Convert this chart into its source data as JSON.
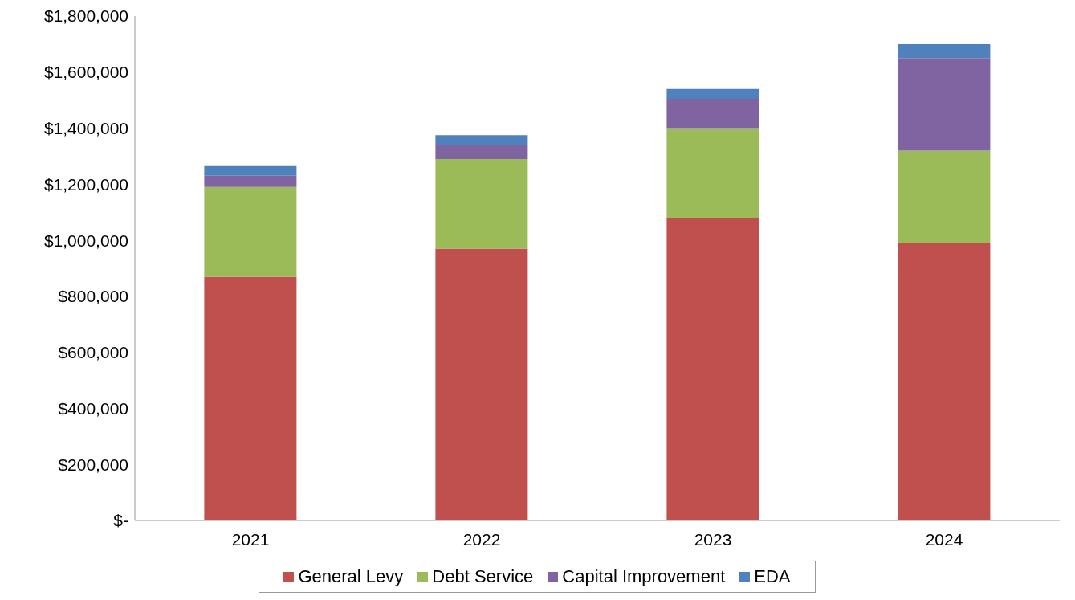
{
  "chart_data": {
    "type": "bar",
    "stacked": true,
    "categories": [
      "2021",
      "2022",
      "2023",
      "2024"
    ],
    "series": [
      {
        "name": "General Levy",
        "color": "#c0504d",
        "values": [
          870000,
          970000,
          1080000,
          990000
        ]
      },
      {
        "name": "Debt Service",
        "color": "#9bbb59",
        "values": [
          320000,
          320000,
          320000,
          330000
        ]
      },
      {
        "name": "Capital Improvement",
        "color": "#8064a2",
        "values": [
          40000,
          50000,
          105000,
          330000
        ]
      },
      {
        "name": "EDA",
        "color": "#4f81bd",
        "values": [
          35000,
          35000,
          35000,
          50000
        ]
      }
    ],
    "ylim": [
      0,
      1800000
    ],
    "yticks": [
      {
        "value": 0,
        "label": "$-"
      },
      {
        "value": 200000,
        "label": "$200,000"
      },
      {
        "value": 400000,
        "label": "$400,000"
      },
      {
        "value": 600000,
        "label": "$600,000"
      },
      {
        "value": 800000,
        "label": "$800,000"
      },
      {
        "value": 1000000,
        "label": "$1,000,000"
      },
      {
        "value": 1200000,
        "label": "$1,200,000"
      },
      {
        "value": 1400000,
        "label": "$1,400,000"
      },
      {
        "value": 1600000,
        "label": "$1,600,000"
      },
      {
        "value": 1800000,
        "label": "$1,800,000"
      }
    ],
    "grid": false,
    "legend": "bottom"
  }
}
